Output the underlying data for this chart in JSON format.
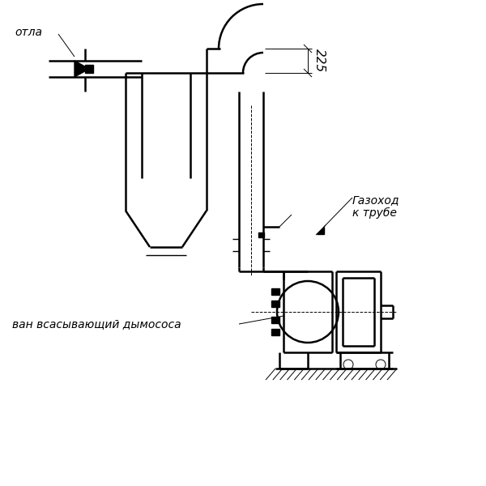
{
  "bg_color": "#ffffff",
  "lc": "#000000",
  "lw": 1.8,
  "lw_t": 1.0,
  "lw_th": 0.7,
  "label_otla": "отла",
  "label_gazohod": "Газоход\nк трубе",
  "label_vsan": "ван всасывающий дымососа",
  "dim_225": "225"
}
